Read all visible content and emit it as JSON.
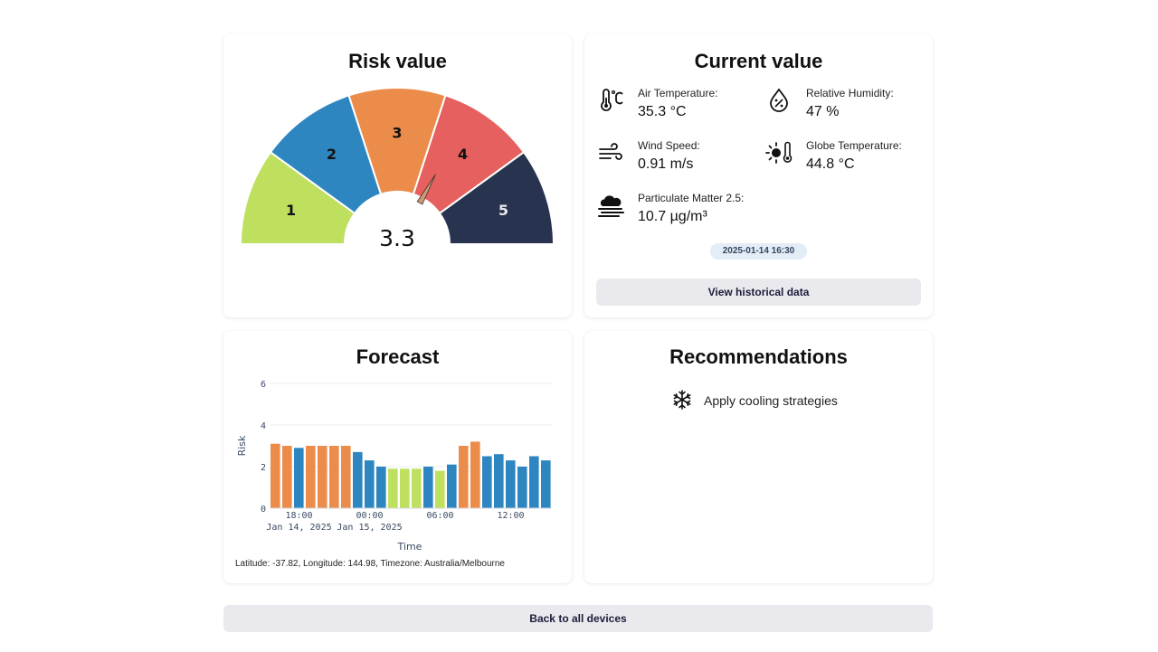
{
  "risk_card": {
    "title": "Risk value",
    "value": 3.3,
    "value_text": "3.3",
    "max": 5,
    "segments": [
      {
        "label": "1",
        "color": "#bfe05f"
      },
      {
        "label": "2",
        "color": "#2e86c1"
      },
      {
        "label": "3",
        "color": "#eb8c4a"
      },
      {
        "label": "4",
        "color": "#e5605e"
      },
      {
        "label": "5",
        "color": "#28344f"
      }
    ],
    "needle_color": "#cf9a72"
  },
  "current_card": {
    "title": "Current value",
    "metrics": [
      {
        "label": "Air Temperature:",
        "value": "35.3 °C",
        "icon": "thermometer-icon"
      },
      {
        "label": "Relative Humidity:",
        "value": "47 %",
        "icon": "humidity-drop-icon"
      },
      {
        "label": "Wind Speed:",
        "value": "0.91 m/s",
        "icon": "wind-icon"
      },
      {
        "label": "Globe Temperature:",
        "value": "44.8 °C",
        "icon": "globe-temperature-icon"
      },
      {
        "label": "Particulate Matter 2.5:",
        "value": "10.7 µg/m³",
        "icon": "smog-cloud-icon"
      }
    ],
    "timestamp": "2025-01-14 16:30",
    "button_label": "View historical data"
  },
  "forecast_card": {
    "title": "Forecast",
    "footnote": "Latitude: -37.82, Longitude: 144.98, Timezone: Australia/Melbourne"
  },
  "chart_data": {
    "type": "bar",
    "xlabel": "Time",
    "ylabel": "Risk",
    "ylim": [
      0,
      6
    ],
    "yticks": [
      0,
      2,
      4,
      6
    ],
    "grid": true,
    "x_tick_labels": [
      {
        "lines": [
          "18:00",
          "Jan 14, 2025"
        ],
        "hour": 2
      },
      {
        "lines": [
          "00:00",
          "Jan 15, 2025"
        ],
        "hour": 8
      },
      {
        "lines": [
          "06:00"
        ],
        "hour": 14
      },
      {
        "lines": [
          "12:00"
        ],
        "hour": 20
      }
    ],
    "bars": [
      {
        "time": "2025-01-14 16:00",
        "value": 3.1,
        "color": "#eb8c4a"
      },
      {
        "time": "2025-01-14 17:00",
        "value": 3.0,
        "color": "#eb8c4a"
      },
      {
        "time": "2025-01-14 18:00",
        "value": 2.9,
        "color": "#2e86c1"
      },
      {
        "time": "2025-01-14 19:00",
        "value": 3.0,
        "color": "#eb8c4a"
      },
      {
        "time": "2025-01-14 20:00",
        "value": 3.0,
        "color": "#eb8c4a"
      },
      {
        "time": "2025-01-14 21:00",
        "value": 3.0,
        "color": "#eb8c4a"
      },
      {
        "time": "2025-01-14 22:00",
        "value": 3.0,
        "color": "#eb8c4a"
      },
      {
        "time": "2025-01-14 23:00",
        "value": 2.7,
        "color": "#2e86c1"
      },
      {
        "time": "2025-01-15 00:00",
        "value": 2.3,
        "color": "#2e86c1"
      },
      {
        "time": "2025-01-15 01:00",
        "value": 2.0,
        "color": "#2e86c1"
      },
      {
        "time": "2025-01-15 02:00",
        "value": 1.9,
        "color": "#bfe05f"
      },
      {
        "time": "2025-01-15 03:00",
        "value": 1.9,
        "color": "#bfe05f"
      },
      {
        "time": "2025-01-15 04:00",
        "value": 1.9,
        "color": "#bfe05f"
      },
      {
        "time": "2025-01-15 05:00",
        "value": 2.0,
        "color": "#2e86c1"
      },
      {
        "time": "2025-01-15 06:00",
        "value": 1.8,
        "color": "#bfe05f"
      },
      {
        "time": "2025-01-15 07:00",
        "value": 2.1,
        "color": "#2e86c1"
      },
      {
        "time": "2025-01-15 08:00",
        "value": 3.0,
        "color": "#eb8c4a"
      },
      {
        "time": "2025-01-15 09:00",
        "value": 3.2,
        "color": "#eb8c4a"
      },
      {
        "time": "2025-01-15 10:00",
        "value": 2.5,
        "color": "#2e86c1"
      },
      {
        "time": "2025-01-15 11:00",
        "value": 2.6,
        "color": "#2e86c1"
      },
      {
        "time": "2025-01-15 12:00",
        "value": 2.3,
        "color": "#2e86c1"
      },
      {
        "time": "2025-01-15 13:00",
        "value": 2.0,
        "color": "#2e86c1"
      },
      {
        "time": "2025-01-15 14:00",
        "value": 2.5,
        "color": "#2e86c1"
      },
      {
        "time": "2025-01-15 15:00",
        "value": 2.3,
        "color": "#2e86c1"
      }
    ]
  },
  "recommendations_card": {
    "title": "Recommendations",
    "items": [
      {
        "text": "Apply cooling strategies",
        "icon": "snowflake-icon"
      }
    ]
  },
  "footer": {
    "back_button_label": "Back to all devices"
  }
}
